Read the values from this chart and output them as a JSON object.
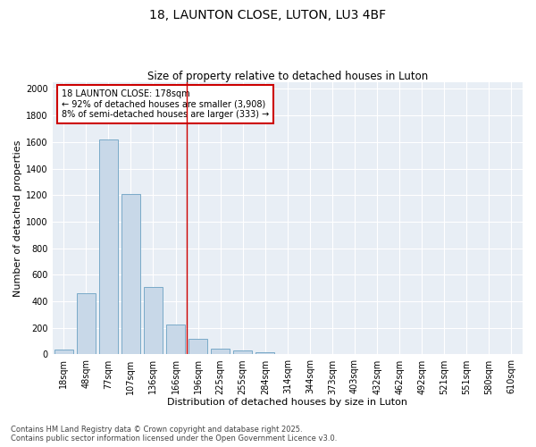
{
  "title": "18, LAUNTON CLOSE, LUTON, LU3 4BF",
  "subtitle": "Size of property relative to detached houses in Luton",
  "xlabel": "Distribution of detached houses by size in Luton",
  "ylabel": "Number of detached properties",
  "categories": [
    "18sqm",
    "48sqm",
    "77sqm",
    "107sqm",
    "136sqm",
    "166sqm",
    "196sqm",
    "225sqm",
    "255sqm",
    "284sqm",
    "314sqm",
    "344sqm",
    "373sqm",
    "403sqm",
    "432sqm",
    "462sqm",
    "492sqm",
    "521sqm",
    "551sqm",
    "580sqm",
    "610sqm"
  ],
  "values": [
    35,
    460,
    1620,
    1210,
    510,
    225,
    120,
    45,
    30,
    20,
    5,
    0,
    0,
    0,
    0,
    0,
    0,
    0,
    0,
    0,
    0
  ],
  "bar_color": "#c8d8e8",
  "bar_edge_color": "#7aaac8",
  "vline_color": "#cc0000",
  "vline_x": 5.5,
  "annotation_title": "18 LAUNTON CLOSE: 178sqm",
  "annotation_line1": "← 92% of detached houses are smaller (3,908)",
  "annotation_line2": "8% of semi-detached houses are larger (333) →",
  "annotation_box_color": "#cc0000",
  "ylim": [
    0,
    2050
  ],
  "yticks": [
    0,
    200,
    400,
    600,
    800,
    1000,
    1200,
    1400,
    1600,
    1800,
    2000
  ],
  "footer_line1": "Contains HM Land Registry data © Crown copyright and database right 2025.",
  "footer_line2": "Contains public sector information licensed under the Open Government Licence v3.0.",
  "bg_color": "#ffffff",
  "plot_bg_color": "#e8eef5",
  "title_fontsize": 10,
  "subtitle_fontsize": 8.5,
  "axis_label_fontsize": 8,
  "tick_fontsize": 7,
  "footer_fontsize": 6,
  "grid_color": "#ffffff",
  "annotation_fontsize": 7
}
